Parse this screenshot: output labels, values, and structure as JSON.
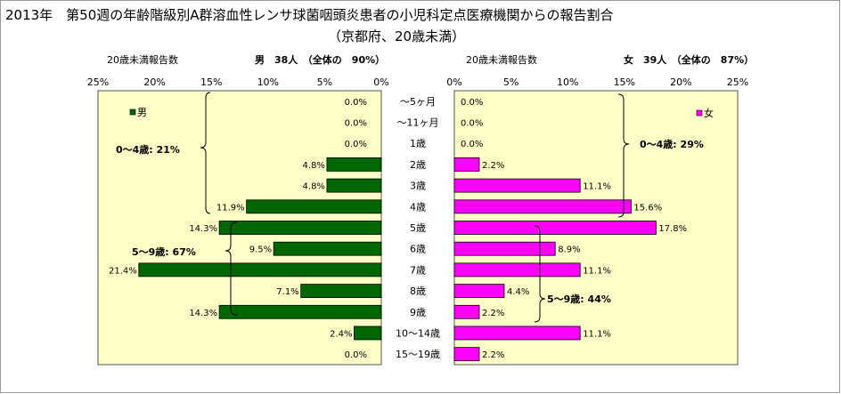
{
  "title": "2013年　第50週の年齢階級別A群溶血性レンサ球菌咽頭炎患者の小児科定点医療機関からの報告割合",
  "subtitle": "（京都府、20歳未満）",
  "colors": {
    "male": "#006600",
    "female": "#ff00ff",
    "plot_bg": "#ffffc8"
  },
  "chart_data": [
    {
      "type": "bar",
      "orientation": "horizontal",
      "direction": "leftward",
      "header_label": "20歳未満報告数",
      "header_info": "男　38人　（全体の　90%）",
      "legend": "男",
      "legend_position": "top-left",
      "xlim": [
        0,
        25
      ],
      "ticks": [
        "25%",
        "20%",
        "15%",
        "10%",
        "5%",
        "0%"
      ],
      "categories": [
        "～5ヶ月",
        "～11ヶ月",
        "1歳",
        "2歳",
        "3歳",
        "4歳",
        "5歳",
        "6歳",
        "7歳",
        "8歳",
        "9歳",
        "10～14歳",
        "15～19歳"
      ],
      "values": [
        0.0,
        0.0,
        0.0,
        4.8,
        4.8,
        11.9,
        14.3,
        9.5,
        21.4,
        7.1,
        14.3,
        2.4,
        0.0
      ],
      "labels": [
        "0.0%",
        "0.0%",
        "0.0%",
        "4.8%",
        "4.8%",
        "11.9%",
        "14.3%",
        "9.5%",
        "21.4%",
        "7.1%",
        "14.3%",
        "2.4%",
        "0.0%"
      ],
      "annotations": [
        "0～4歳:  21%",
        "5～9歳:  67%"
      ]
    },
    {
      "type": "bar",
      "orientation": "horizontal",
      "direction": "rightward",
      "header_label": "20歳未満報告数",
      "header_info": "女　39人　（全体の　87%）",
      "legend": "女",
      "legend_position": "top-right",
      "xlim": [
        0,
        25
      ],
      "ticks": [
        "0%",
        "5%",
        "10%",
        "15%",
        "20%",
        "25%"
      ],
      "categories": [
        "～5ヶ月",
        "～11ヶ月",
        "1歳",
        "2歳",
        "3歳",
        "4歳",
        "5歳",
        "6歳",
        "7歳",
        "8歳",
        "9歳",
        "10～14歳",
        "15～19歳"
      ],
      "values": [
        0.0,
        0.0,
        0.0,
        2.2,
        11.1,
        15.6,
        17.8,
        8.9,
        11.1,
        4.4,
        2.2,
        11.1,
        2.2
      ],
      "labels": [
        "0.0%",
        "0.0%",
        "0.0%",
        "2.2%",
        "11.1%",
        "15.6%",
        "17.8%",
        "8.9%",
        "11.1%",
        "4.4%",
        "2.2%",
        "11.1%",
        "2.2%"
      ],
      "annotations": [
        "0～4歳:  29%",
        "5～9歳:  44%"
      ]
    }
  ]
}
